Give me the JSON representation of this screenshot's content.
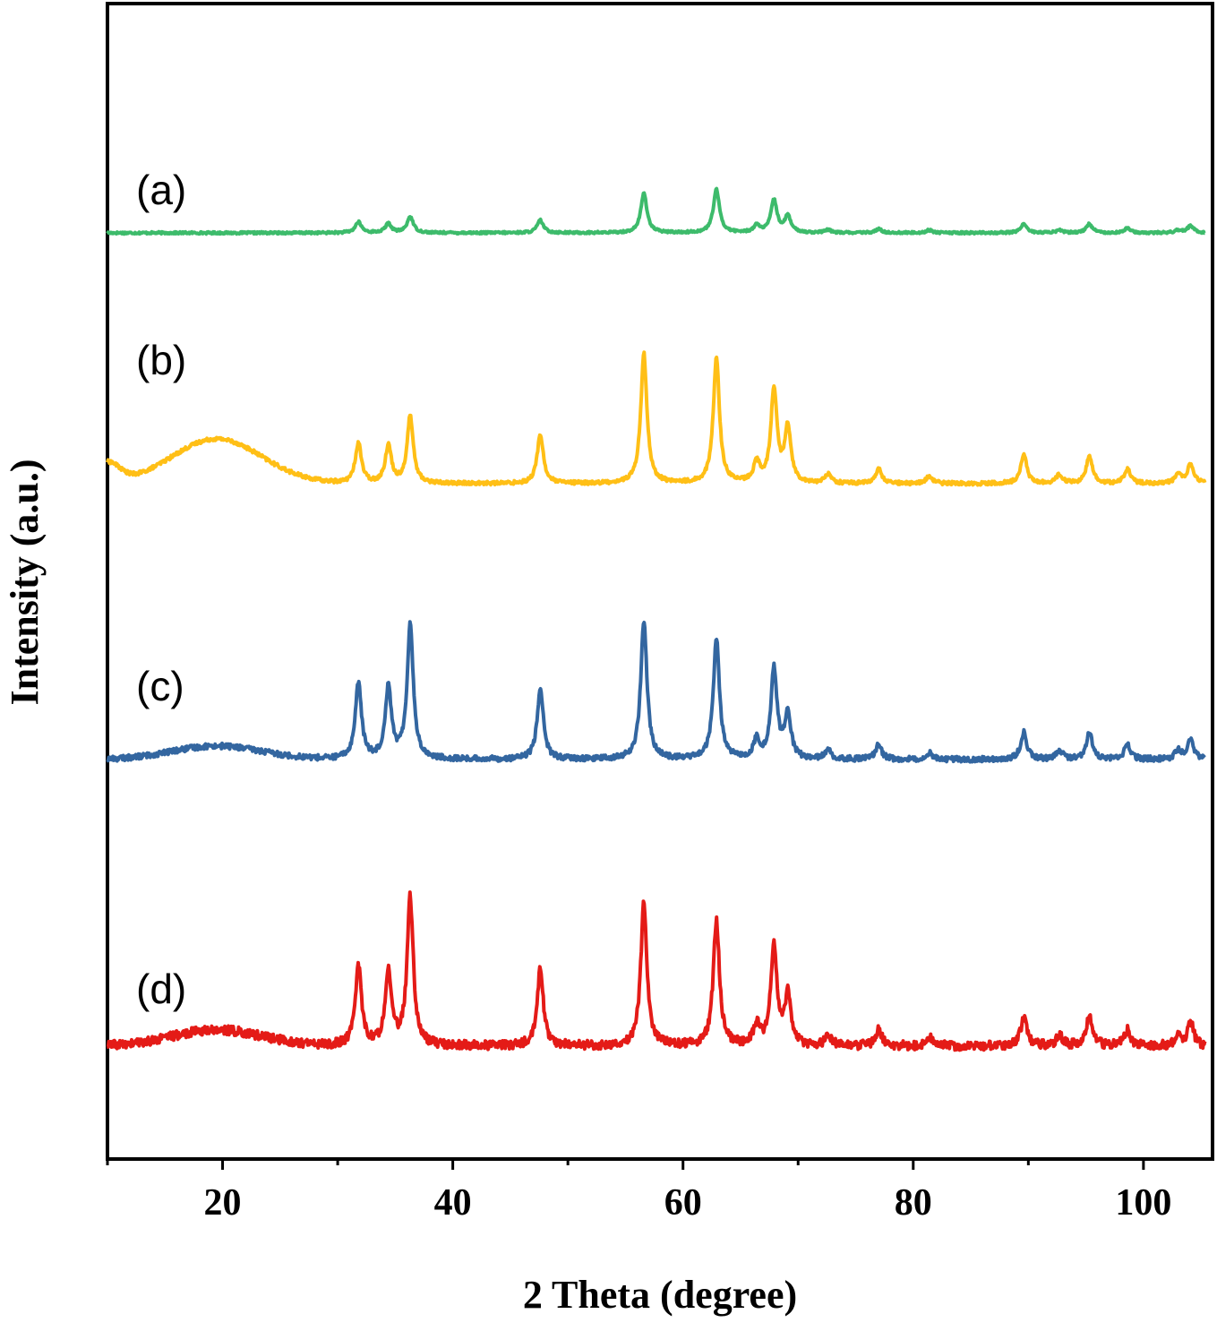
{
  "chart_data": {
    "type": "line",
    "title": "",
    "xlabel": "2 Theta (degree)",
    "ylabel": "Intensity (a.u.)",
    "xlim": [
      10,
      106
    ],
    "xticks_major": [
      20,
      40,
      60,
      80,
      100
    ],
    "xticks_minor": [
      10,
      30,
      50,
      70,
      90
    ],
    "yticks_shown": false,
    "grid": false,
    "legend": "none",
    "peak_positions": [
      31.8,
      34.4,
      36.3,
      47.6,
      56.6,
      62.9,
      66.4,
      67.9,
      69.1,
      72.6,
      77.0,
      81.4,
      89.6,
      92.7,
      95.3,
      98.6,
      103.0,
      104.1
    ],
    "series": [
      {
        "name": "(a)",
        "color": "#3dbb6b",
        "offset": 260,
        "hump": {
          "center": 20,
          "height": 0
        },
        "peak_heights": [
          12,
          10,
          18,
          14,
          44,
          48,
          8,
          36,
          18,
          3,
          4,
          3,
          10,
          3,
          10,
          5,
          3,
          8
        ],
        "noise": 1.2
      },
      {
        "name": "(b)",
        "color": "#ffbf16",
        "offset": 540,
        "hump": {
          "center": 19.5,
          "height": 50
        },
        "peak_heights": [
          45,
          42,
          75,
          55,
          145,
          140,
          22,
          105,
          62,
          10,
          16,
          8,
          32,
          10,
          30,
          16,
          10,
          22
        ],
        "noise": 2
      },
      {
        "name": "(c)",
        "color": "#3366a0",
        "offset": 848,
        "hump": {
          "center": 19.5,
          "height": 15
        },
        "peak_heights": [
          85,
          80,
          150,
          80,
          155,
          135,
          20,
          100,
          50,
          10,
          16,
          8,
          30,
          10,
          30,
          16,
          10,
          22
        ],
        "noise": 3
      },
      {
        "name": "(d)",
        "color": "#e41b17",
        "offset": 1168,
        "hump": {
          "center": 19.5,
          "height": 18
        },
        "peak_heights": [
          90,
          85,
          165,
          85,
          160,
          140,
          22,
          110,
          55,
          12,
          18,
          10,
          32,
          12,
          35,
          18,
          12,
          26
        ],
        "noise": 5
      }
    ]
  }
}
